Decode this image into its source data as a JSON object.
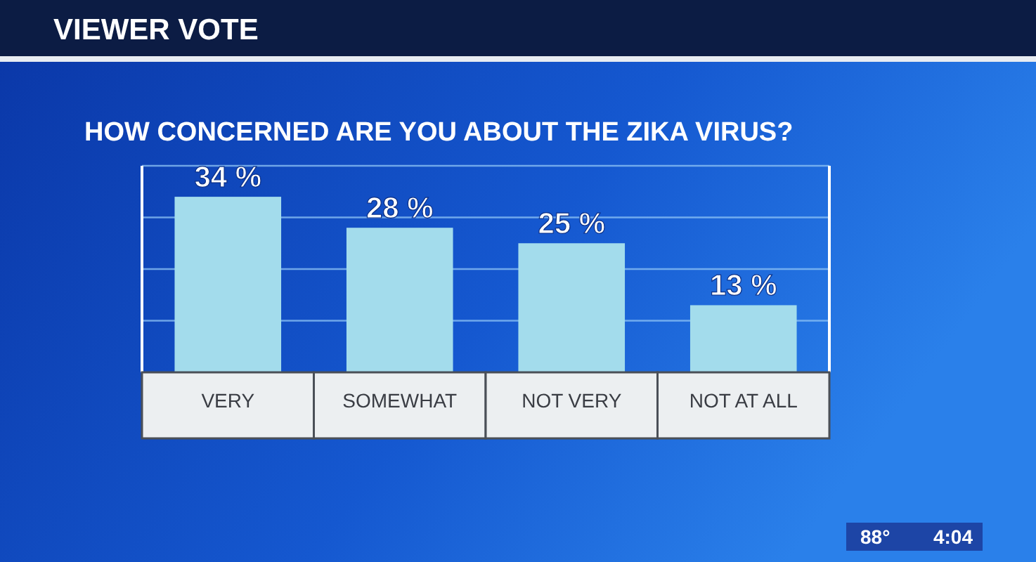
{
  "chart_data": {
    "type": "bar",
    "title": "VIEWER VOTE",
    "subtitle": "HOW CONCERNED ARE YOU ABOUT THE ZIKA VIRUS?",
    "categories": [
      "VERY",
      "SOMEWHAT",
      "NOT VERY",
      "NOT AT ALL"
    ],
    "values": [
      34,
      28,
      25,
      13
    ],
    "value_labels": [
      "34 %",
      "28 %",
      "25 %",
      "13 %"
    ],
    "color": "#a3dcec",
    "ylim": [
      0,
      40
    ],
    "yticks": [
      {
        "value": 10,
        "label": null
      },
      {
        "value": 20,
        "label": null
      },
      {
        "value": 30,
        "label": null
      },
      {
        "value": 40,
        "label": null
      }
    ],
    "grid": "y",
    "tick_labels": "x",
    "annotations": [
      "88°",
      "4:04"
    ]
  }
}
